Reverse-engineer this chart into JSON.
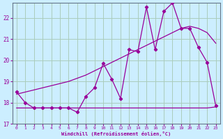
{
  "title": "",
  "xlabel": "Windchill (Refroidissement éolien,°C)",
  "ylabel": "",
  "background_color": "#cceeff",
  "grid_color": "#aaccbb",
  "line_color": "#990099",
  "xlim": [
    -0.5,
    23.5
  ],
  "ylim": [
    17.0,
    22.7
  ],
  "yticks": [
    17,
    18,
    19,
    20,
    21,
    22
  ],
  "xticks": [
    0,
    1,
    2,
    3,
    4,
    5,
    6,
    7,
    8,
    9,
    10,
    11,
    12,
    13,
    14,
    15,
    16,
    17,
    18,
    19,
    20,
    21,
    22,
    23
  ],
  "x": [
    0,
    1,
    2,
    3,
    4,
    5,
    6,
    7,
    8,
    9,
    10,
    11,
    12,
    13,
    14,
    15,
    16,
    17,
    18,
    19,
    20,
    21,
    22,
    23
  ],
  "line_wavy": [
    18.5,
    18.0,
    17.75,
    17.75,
    17.75,
    17.75,
    17.75,
    17.55,
    18.3,
    18.7,
    19.85,
    19.1,
    18.2,
    20.5,
    20.4,
    22.5,
    20.5,
    22.3,
    22.7,
    21.5,
    21.5,
    20.6,
    19.9,
    17.85
  ],
  "line_smooth": [
    18.4,
    18.5,
    18.6,
    18.7,
    18.8,
    18.9,
    19.0,
    19.15,
    19.3,
    19.5,
    19.7,
    19.9,
    20.1,
    20.3,
    20.5,
    20.7,
    20.9,
    21.1,
    21.3,
    21.5,
    21.6,
    21.5,
    21.3,
    20.8
  ],
  "line_flat": [
    17.75,
    17.75,
    17.75,
    17.75,
    17.75,
    17.75,
    17.75,
    17.75,
    17.75,
    17.75,
    17.75,
    17.75,
    17.75,
    17.75,
    17.75,
    17.75,
    17.75,
    17.75,
    17.75,
    17.75,
    17.75,
    17.75,
    17.75,
    17.8
  ]
}
